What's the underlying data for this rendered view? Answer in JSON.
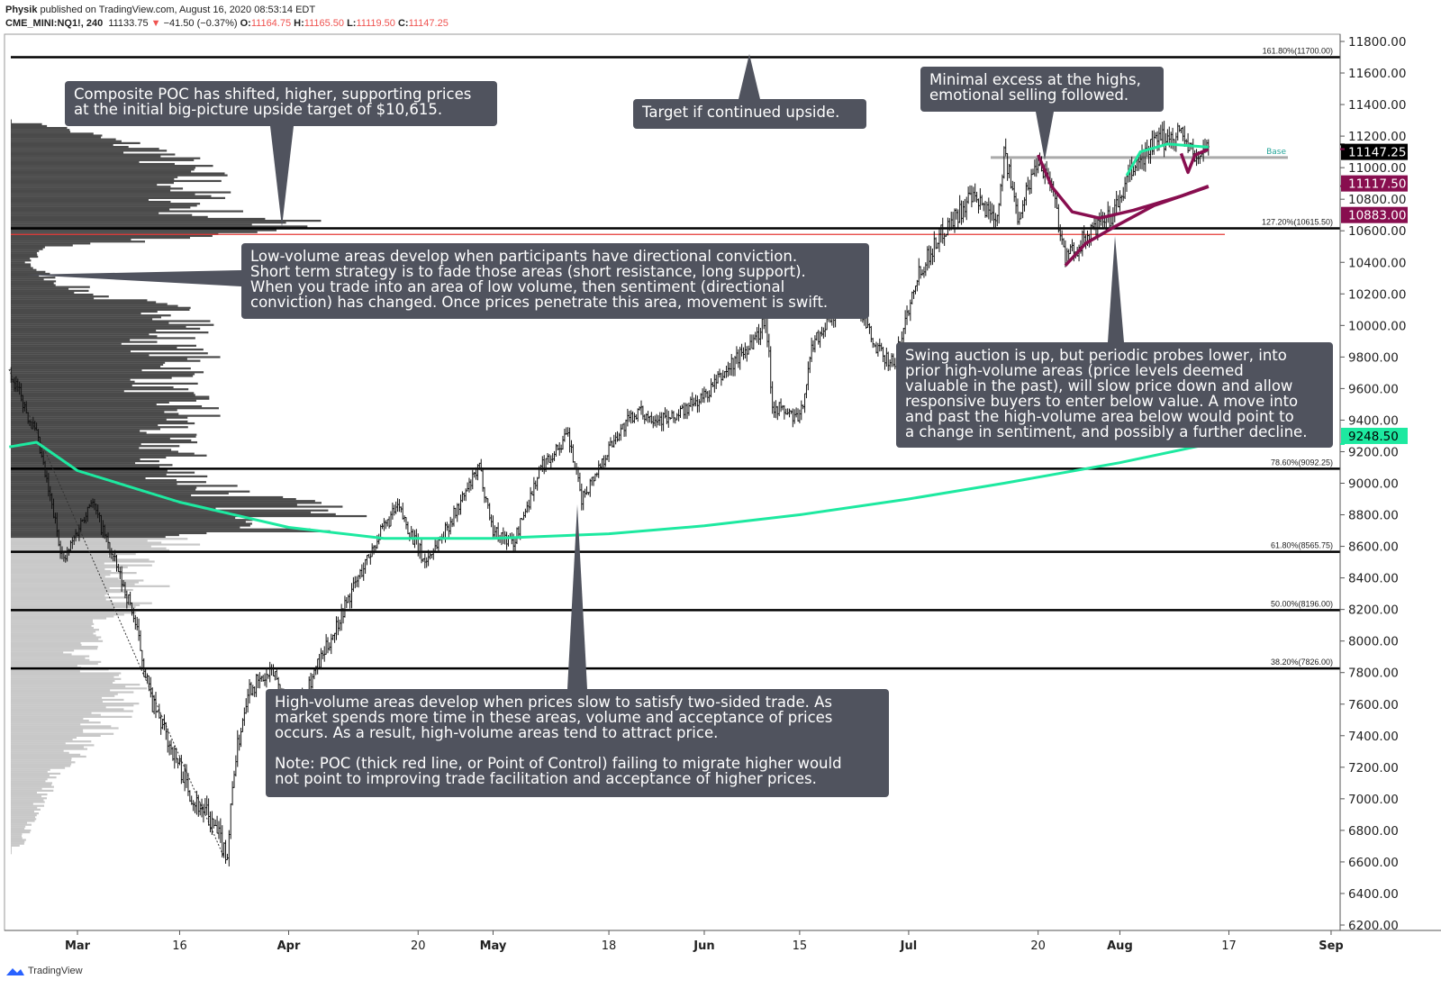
{
  "header": {
    "author": "Physik",
    "published": "published on TradingView.com, August 16, 2020 08:53:14 EDT",
    "symbol": "CME_MINI:NQ1!, 240",
    "last": "11133.75",
    "change_arrow": "▼",
    "change": "−41.50 (−0.37%)",
    "o_label": "O:",
    "o": "11164.75",
    "h_label": "H:",
    "h": "11165.50",
    "l_label": "L:",
    "l": "11119.50",
    "c_label": "C:",
    "c": "11147.25"
  },
  "footer": {
    "brand": "TradingView"
  },
  "colors": {
    "annotation_bg": "#50535e",
    "ma_green": "#1de9a0",
    "vwap_maroon": "#880e4f",
    "poc_red": "#e53935",
    "profile_dark": "#4a4a4a",
    "profile_light": "#c8c8c8"
  },
  "chart_data": {
    "type": "candlestick",
    "title": "CME_MINI:NQ1!, 240",
    "ylim": [
      6200,
      11800
    ],
    "y_ticks": [
      "11800.00",
      "11600.00",
      "11400.00",
      "11200.00",
      "11000.00",
      "10800.00",
      "10600.00",
      "10400.00",
      "10200.00",
      "10000.00",
      "9800.00",
      "9600.00",
      "9400.00",
      "9200.00",
      "9000.00",
      "8800.00",
      "8600.00",
      "8400.00",
      "8200.00",
      "8000.00",
      "7800.00",
      "7600.00",
      "7400.00",
      "7200.00",
      "7000.00",
      "6800.00",
      "6600.00",
      "6400.00",
      "6200.00"
    ],
    "x_ticks": [
      {
        "label": "Mar",
        "date": "2020-03-01",
        "bold": true
      },
      {
        "label": "16",
        "date": "2020-03-16"
      },
      {
        "label": "Apr",
        "date": "2020-04-01",
        "bold": true
      },
      {
        "label": "20",
        "date": "2020-04-20"
      },
      {
        "label": "May",
        "date": "2020-05-01",
        "bold": true
      },
      {
        "label": "18",
        "date": "2020-05-18"
      },
      {
        "label": "Jun",
        "date": "2020-06-01",
        "bold": true
      },
      {
        "label": "15",
        "date": "2020-06-15"
      },
      {
        "label": "Jul",
        "date": "2020-07-01",
        "bold": true
      },
      {
        "label": "20",
        "date": "2020-07-20"
      },
      {
        "label": "Aug",
        "date": "2020-08-01",
        "bold": true
      },
      {
        "label": "17",
        "date": "2020-08-17"
      },
      {
        "label": "Sep",
        "date": "2020-09-01",
        "bold": true
      }
    ],
    "price_path": [
      [
        "2020-02-20",
        9720
      ],
      [
        "2020-02-24",
        9300
      ],
      [
        "2020-02-28",
        8500
      ],
      [
        "2020-03-03",
        8900
      ],
      [
        "2020-03-09",
        8200
      ],
      [
        "2020-03-12",
        7600
      ],
      [
        "2020-03-16",
        7200
      ],
      [
        "2020-03-18",
        7000
      ],
      [
        "2020-03-20",
        6900
      ],
      [
        "2020-03-23",
        6650
      ],
      [
        "2020-03-24",
        7200
      ],
      [
        "2020-03-26",
        7700
      ],
      [
        "2020-03-30",
        7800
      ],
      [
        "2020-04-01",
        7500
      ],
      [
        "2020-04-06",
        7900
      ],
      [
        "2020-04-09",
        8200
      ],
      [
        "2020-04-14",
        8650
      ],
      [
        "2020-04-17",
        8850
      ],
      [
        "2020-04-21",
        8500
      ],
      [
        "2020-04-24",
        8700
      ],
      [
        "2020-04-29",
        9100
      ],
      [
        "2020-05-01",
        8700
      ],
      [
        "2020-05-04",
        8620
      ],
      [
        "2020-05-08",
        9100
      ],
      [
        "2020-05-12",
        9300
      ],
      [
        "2020-05-14",
        8900
      ],
      [
        "2020-05-19",
        9300
      ],
      [
        "2020-05-22",
        9450
      ],
      [
        "2020-05-27",
        9400
      ],
      [
        "2020-06-01",
        9550
      ],
      [
        "2020-06-05",
        9750
      ],
      [
        "2020-06-09",
        9950
      ],
      [
        "2020-06-10",
        10080
      ],
      [
        "2020-06-11",
        9500
      ],
      [
        "2020-06-15",
        9400
      ],
      [
        "2020-06-17",
        9900
      ],
      [
        "2020-06-23",
        10230
      ],
      [
        "2020-06-26",
        9850
      ],
      [
        "2020-06-29",
        9760
      ],
      [
        "2020-07-02",
        10300
      ],
      [
        "2020-07-06",
        10600
      ],
      [
        "2020-07-10",
        10800
      ],
      [
        "2020-07-14",
        10700
      ],
      [
        "2020-07-15",
        11100
      ],
      [
        "2020-07-17",
        10700
      ],
      [
        "2020-07-20",
        11060
      ],
      [
        "2020-07-22",
        10900
      ],
      [
        "2020-07-24",
        10420
      ],
      [
        "2020-07-28",
        10600
      ],
      [
        "2020-07-31",
        10700
      ],
      [
        "2020-08-03",
        11000
      ],
      [
        "2020-08-06",
        11150
      ],
      [
        "2020-08-10",
        11230
      ],
      [
        "2020-08-12",
        11050
      ],
      [
        "2020-08-14",
        11147
      ]
    ],
    "fib_levels": [
      {
        "label": "161.80%(11700.00)",
        "price": 11700
      },
      {
        "label": "127.20%(10615.50)",
        "price": 10615.5
      },
      {
        "label": "78.60%(9092.25)",
        "price": 9092.25
      },
      {
        "label": "61.80%(8565.75)",
        "price": 8565.75
      },
      {
        "label": "50.00%(8196.00)",
        "price": 8196
      },
      {
        "label": "38.20%(7826.00)",
        "price": 7826
      }
    ],
    "poc_price": 10600,
    "base": {
      "label": "Base",
      "price": 11064
    },
    "moving_average": [
      [
        "2020-02-20",
        9230
      ],
      [
        "2020-02-24",
        9260
      ],
      [
        "2020-03-01",
        9080
      ],
      [
        "2020-03-16",
        8880
      ],
      [
        "2020-04-01",
        8720
      ],
      [
        "2020-04-15",
        8650
      ],
      [
        "2020-05-01",
        8650
      ],
      [
        "2020-05-18",
        8680
      ],
      [
        "2020-06-01",
        8730
      ],
      [
        "2020-06-15",
        8800
      ],
      [
        "2020-07-01",
        8900
      ],
      [
        "2020-07-15",
        9000
      ],
      [
        "2020-08-01",
        9130
      ],
      [
        "2020-08-14",
        9248.5
      ]
    ],
    "vwap_upper": [
      [
        "2020-07-20",
        11080
      ],
      [
        "2020-07-22",
        10880
      ],
      [
        "2020-07-25",
        10720
      ],
      [
        "2020-07-29",
        10680
      ],
      [
        "2020-08-03",
        10730
      ],
      [
        "2020-08-10",
        10820
      ],
      [
        "2020-08-14",
        10883
      ]
    ],
    "vwap_lower": [
      [
        "2020-07-24",
        10380
      ],
      [
        "2020-07-27",
        10520
      ],
      [
        "2020-07-31",
        10620
      ],
      [
        "2020-08-06",
        10760
      ],
      [
        "2020-08-14",
        10880
      ]
    ],
    "vwap_short": [
      [
        "2020-08-10",
        11090
      ],
      [
        "2020-08-11",
        10970
      ],
      [
        "2020-08-12",
        11080
      ],
      [
        "2020-08-14",
        11117.5
      ]
    ],
    "teal_short": [
      [
        "2020-08-02",
        10950
      ],
      [
        "2020-08-04",
        11100
      ],
      [
        "2020-08-08",
        11150
      ],
      [
        "2020-08-14",
        11130
      ]
    ],
    "volume_profile": [
      [
        11280,
        0.1
      ],
      [
        11100,
        0.45
      ],
      [
        10950,
        0.55
      ],
      [
        10800,
        0.55
      ],
      [
        10700,
        0.6
      ],
      [
        10620,
        1.0
      ],
      [
        10500,
        0.1
      ],
      [
        10400,
        0.05
      ],
      [
        10300,
        0.12
      ],
      [
        10200,
        0.25
      ],
      [
        10050,
        0.6
      ],
      [
        9900,
        0.45
      ],
      [
        9750,
        0.55
      ],
      [
        9600,
        0.45
      ],
      [
        9450,
        0.55
      ],
      [
        9300,
        0.45
      ],
      [
        9200,
        0.5
      ],
      [
        9100,
        0.45
      ],
      [
        9000,
        0.6
      ],
      [
        8900,
        0.75
      ],
      [
        8800,
        0.9
      ],
      [
        8720,
        0.95
      ],
      [
        8650,
        0.5
      ],
      [
        8500,
        0.35
      ],
      [
        8300,
        0.4
      ],
      [
        8100,
        0.25
      ],
      [
        7900,
        0.2
      ],
      [
        7700,
        0.35
      ],
      [
        7500,
        0.3
      ],
      [
        7300,
        0.2
      ],
      [
        7100,
        0.12
      ],
      [
        6900,
        0.07
      ],
      [
        6700,
        0.03
      ]
    ],
    "price_labels": [
      {
        "text": "11147.25",
        "price": 11147.25,
        "bg": "#000000"
      },
      {
        "text": "11117.50",
        "price": 11117.5,
        "bg": "#880e4f"
      },
      {
        "text": "10883.00",
        "price": 10883,
        "bg": "#880e4f"
      },
      {
        "text": "9248.50",
        "price": 9248.5,
        "bg": "#1de9a0"
      }
    ]
  },
  "annotations": {
    "poc": "Composite POC has shifted, higher, supporting prices\nat the initial big-picture upside target of $10,615.",
    "target": "Target if continued upside.",
    "excess": "Minimal excess at the highs,\nemotional selling followed.",
    "low_volume": "Low-volume areas develop when participants have directional conviction.\nShort term strategy is to fade those areas (short resistance, long support).\nWhen you trade into an area of low volume, then sentiment (directional\nconviction) has changed. Once prices penetrate this area, movement is swift.",
    "swing": "Swing auction is up, but periodic probes lower, into\nprior high-volume areas (price levels deemed\nvaluable in the past), will slow price down and allow\nresponsive buyers to enter below value. A move into\nand past the high-volume area below would point to\na change in sentiment, and possibly a further decline.",
    "high_volume": "High-volume areas develop when prices slow to satisfy two-sided trade. As\nmarket spends more time in these areas, volume and acceptance of prices\noccurs. As a result, high-volume areas tend to attract price.\n\nNote: POC (thick red line, or Point of Control) failing to migrate higher would\nnot point to improving trade facilitation and acceptance of higher prices."
  }
}
